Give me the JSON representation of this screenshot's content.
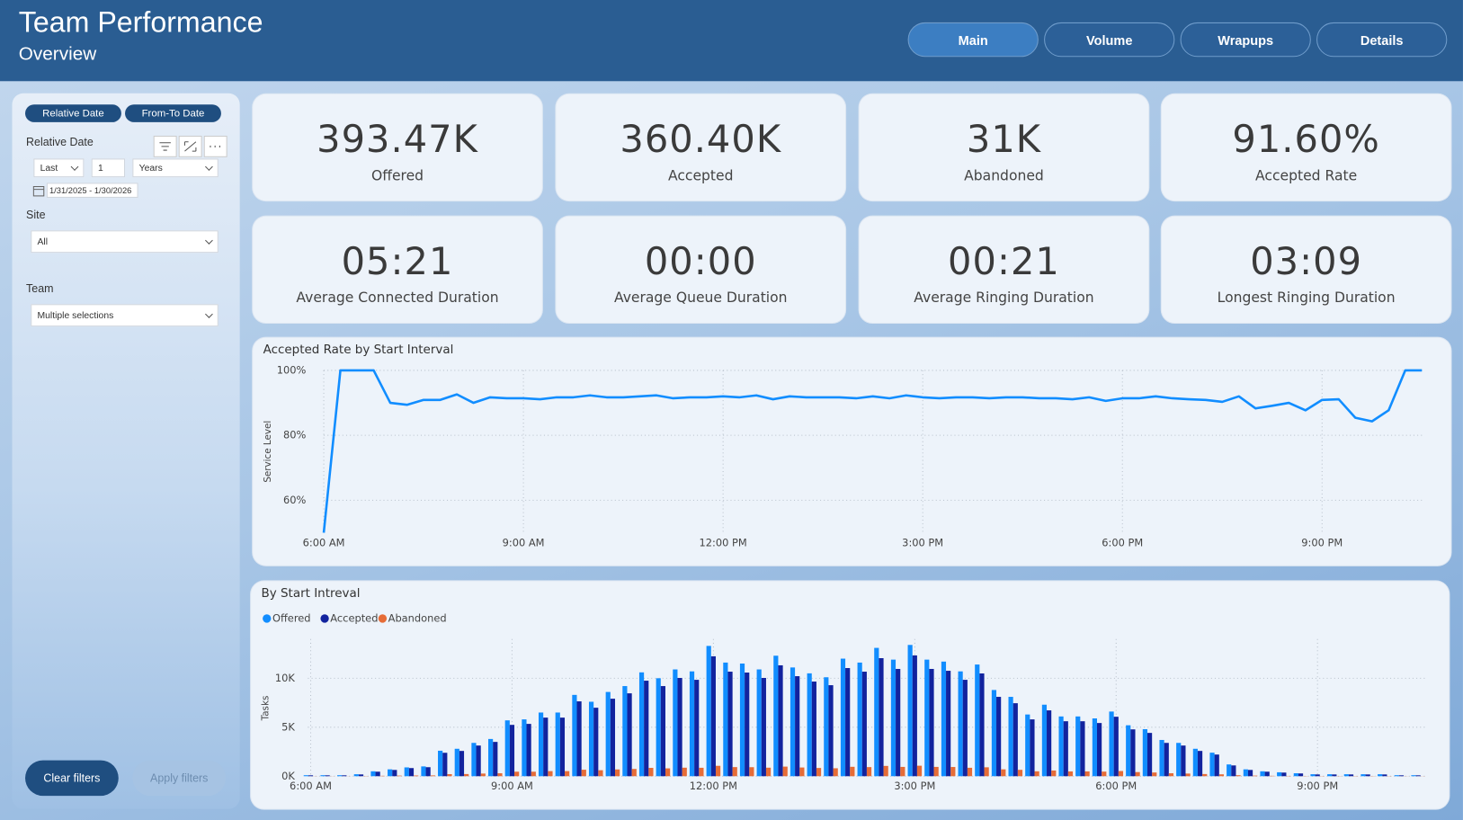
{
  "header": {
    "title": "Team Performance",
    "subtitle": "Overview"
  },
  "nav": [
    "Main",
    "Volume",
    "Wrapups",
    "Details"
  ],
  "filters": {
    "modes": [
      "Relative Date",
      "From-To Date"
    ],
    "relative_date": {
      "label": "Relative Date",
      "direction": "Last",
      "count": 1,
      "unit": "Years",
      "range": "1/31/2025 - 1/30/2026"
    },
    "site": {
      "label": "Site",
      "value": "All"
    },
    "team": {
      "label": "Team",
      "value": "Multiple selections"
    },
    "actions": [
      "Clear filters",
      "Apply filters"
    ]
  },
  "kpis": [
    {
      "value": "393.47K",
      "label": "Offered"
    },
    {
      "value": "360.40K",
      "label": "Accepted"
    },
    {
      "value": "31K",
      "label": "Abandoned"
    },
    {
      "value": "91.60%",
      "label": "Accepted Rate"
    },
    {
      "value": "05:21",
      "label": "Average Connected Duration"
    },
    {
      "value": "00:00",
      "label": "Average Queue Duration"
    },
    {
      "value": "00:21",
      "label": "Average Ringing Duration"
    },
    {
      "value": "03:09",
      "label": "Longest Ringing Duration"
    }
  ],
  "chart_data": [
    {
      "type": "line",
      "title": "Accepted Rate by Start Interval",
      "y_label": "Service Level",
      "color": "#118dff",
      "grid": true,
      "x": [
        6,
        6.25,
        6.5,
        6.75,
        7,
        7.25,
        7.5,
        7.75,
        8,
        8.25,
        8.5,
        8.75,
        9,
        9.25,
        9.5,
        9.75,
        10,
        10.25,
        10.5,
        10.75,
        11,
        11.25,
        11.5,
        11.75,
        12,
        12.25,
        12.5,
        12.75,
        13,
        13.25,
        13.5,
        13.75,
        14,
        14.25,
        14.5,
        14.75,
        15,
        15.25,
        15.5,
        15.75,
        16,
        16.25,
        16.5,
        16.75,
        17,
        17.25,
        17.5,
        17.75,
        18,
        18.25,
        18.5,
        18.75,
        19,
        19.25,
        19.5,
        19.75,
        20,
        20.25,
        20.5,
        20.75,
        21,
        21.25,
        21.5,
        21.75,
        22,
        22.25,
        22.5
      ],
      "values": [
        50,
        100,
        100,
        100,
        90,
        89.4,
        90.9,
        90.9,
        92.6,
        90,
        91.7,
        91.4,
        91.4,
        91.1,
        91.7,
        91.7,
        92.3,
        91.7,
        91.7,
        92,
        92.3,
        91.4,
        91.7,
        91.7,
        92,
        91.7,
        92.3,
        91.1,
        92,
        91.7,
        91.7,
        91.7,
        91.4,
        92,
        91.4,
        92.3,
        91.7,
        91.4,
        91.7,
        91.7,
        91.4,
        91.7,
        91.7,
        91.4,
        91.4,
        91.1,
        91.7,
        90.6,
        91.4,
        91.4,
        92,
        91.4,
        91.1,
        90.9,
        90.3,
        92,
        88.3,
        89.1,
        90,
        87.7,
        90.9,
        91.1,
        85.4,
        84.3,
        87.7,
        100,
        100
      ],
      "xlim": [
        6,
        22.5
      ],
      "xticks": [
        {
          "value": 6,
          "label": "6:00 AM"
        },
        {
          "value": 9,
          "label": "9:00 AM"
        },
        {
          "value": 12,
          "label": "12:00 PM"
        },
        {
          "value": 15,
          "label": "3:00 PM"
        },
        {
          "value": 18,
          "label": "6:00 PM"
        },
        {
          "value": 21,
          "label": "9:00 PM"
        }
      ],
      "ylim": [
        50,
        100
      ],
      "yticks": [
        {
          "value": 60,
          "label": "60%"
        },
        {
          "value": 80,
          "label": "80%"
        },
        {
          "value": 100,
          "label": "100%"
        }
      ]
    },
    {
      "type": "bar",
      "title": "By Start Intreval",
      "y_label": "Tasks",
      "grid": true,
      "x": [
        6,
        6.25,
        6.5,
        6.75,
        7,
        7.25,
        7.5,
        7.75,
        8,
        8.25,
        8.5,
        8.75,
        9,
        9.25,
        9.5,
        9.75,
        10,
        10.25,
        10.5,
        10.75,
        11,
        11.25,
        11.5,
        11.75,
        12,
        12.25,
        12.5,
        12.75,
        13,
        13.25,
        13.5,
        13.75,
        14,
        14.25,
        14.5,
        14.75,
        15,
        15.25,
        15.5,
        15.75,
        16,
        16.25,
        16.5,
        16.75,
        17,
        17.25,
        17.5,
        17.75,
        18,
        18.25,
        18.5,
        18.75,
        19,
        19.25,
        19.5,
        19.75,
        20,
        20.25,
        20.5,
        20.75,
        21,
        21.25,
        21.5,
        21.75,
        22,
        22.25,
        22.5
      ],
      "series": [
        {
          "name": "Offered",
          "color": "#118dff",
          "values": [
            100,
            100,
            100,
            200,
            500,
            700,
            900,
            1000,
            2600,
            2800,
            3400,
            3800,
            5700,
            5800,
            6500,
            6500,
            8300,
            7600,
            8600,
            9200,
            10600,
            10000,
            10900,
            10700,
            13300,
            11600,
            11500,
            10900,
            12300,
            11100,
            10500,
            10100,
            12000,
            11600,
            13100,
            11900,
            13400,
            11900,
            11700,
            10700,
            11400,
            8800,
            8100,
            6300,
            7300,
            6100,
            6100,
            5900,
            6600,
            5200,
            4800,
            3700,
            3400,
            2800,
            2400,
            1200,
            700,
            500,
            400,
            300,
            200,
            200,
            200,
            200,
            200,
            100,
            100
          ]
        },
        {
          "name": "Accepted",
          "color": "#12239e",
          "values": [
            90,
            90,
            90,
            180,
            460,
            640,
            830,
            920,
            2390,
            2580,
            3130,
            3500,
            5240,
            5340,
            5980,
            5980,
            7640,
            6990,
            7910,
            8460,
            9750,
            9200,
            10030,
            9840,
            12240,
            10670,
            10580,
            10030,
            11320,
            10210,
            9660,
            9290,
            11040,
            10670,
            12050,
            10950,
            12330,
            10950,
            10760,
            9840,
            10490,
            8100,
            7450,
            5800,
            6720,
            5610,
            5610,
            5430,
            6070,
            4780,
            4420,
            3400,
            3130,
            2580,
            2210,
            1100,
            640,
            460,
            370,
            280,
            180,
            180,
            180,
            180,
            180,
            90,
            90
          ]
        },
        {
          "name": "Abandoned",
          "color": "#e66c37",
          "values": [
            10,
            10,
            10,
            20,
            40,
            60,
            70,
            80,
            210,
            220,
            270,
            300,
            460,
            460,
            520,
            520,
            660,
            610,
            690,
            740,
            850,
            800,
            870,
            860,
            1060,
            930,
            920,
            870,
            980,
            890,
            840,
            810,
            960,
            930,
            1050,
            950,
            1070,
            950,
            940,
            860,
            910,
            700,
            650,
            500,
            580,
            490,
            490,
            470,
            530,
            420,
            380,
            300,
            270,
            220,
            190,
            100,
            60,
            40,
            30,
            20,
            20,
            20,
            20,
            20,
            20,
            10,
            10
          ]
        }
      ],
      "xlim": [
        5.875,
        22.625
      ],
      "xticks": [
        {
          "value": 6,
          "label": "6:00 AM"
        },
        {
          "value": 9,
          "label": "9:00 AM"
        },
        {
          "value": 12,
          "label": "12:00 PM"
        },
        {
          "value": 15,
          "label": "3:00 PM"
        },
        {
          "value": 18,
          "label": "6:00 PM"
        },
        {
          "value": 21,
          "label": "9:00 PM"
        }
      ],
      "ylim": [
        0,
        14000
      ],
      "yticks": [
        {
          "value": 0,
          "label": "0K"
        },
        {
          "value": 5000,
          "label": "5K"
        },
        {
          "value": 10000,
          "label": "10K"
        }
      ]
    }
  ]
}
